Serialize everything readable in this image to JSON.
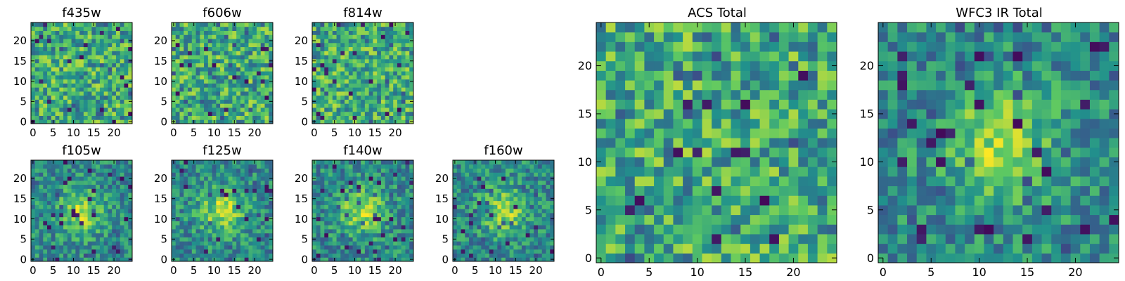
{
  "chart_data": [
    {
      "type": "heatmap",
      "title": "f435w",
      "xticks": [
        "0",
        "5",
        "10",
        "15",
        "20"
      ],
      "yticks": [
        "0",
        "5",
        "10",
        "15",
        "20"
      ],
      "xlim": [
        -0.5,
        24.5
      ],
      "ylim": [
        -0.5,
        24.5
      ],
      "grid_size": 25,
      "cell_values": "random_noise"
    },
    {
      "type": "heatmap",
      "title": "f606w",
      "xticks": [
        "0",
        "5",
        "10",
        "15",
        "20"
      ],
      "yticks": [
        "0",
        "5",
        "10",
        "15",
        "20"
      ],
      "xlim": [
        -0.5,
        24.5
      ],
      "ylim": [
        -0.5,
        24.5
      ],
      "grid_size": 25,
      "cell_values": "random_noise"
    },
    {
      "type": "heatmap",
      "title": "f814w",
      "xticks": [
        "0",
        "5",
        "10",
        "15",
        "20"
      ],
      "yticks": [
        "0",
        "5",
        "10",
        "15",
        "20"
      ],
      "xlim": [
        -0.5,
        24.5
      ],
      "ylim": [
        -0.5,
        24.5
      ],
      "grid_size": 25,
      "cell_values": "random_noise"
    },
    {
      "type": "heatmap",
      "title": "f105w",
      "xticks": [
        "0",
        "5",
        "10",
        "15",
        "20"
      ],
      "yticks": [
        "0",
        "5",
        "10",
        "15",
        "20"
      ],
      "xlim": [
        -0.5,
        24.5
      ],
      "ylim": [
        -0.5,
        24.5
      ],
      "grid_size": 25,
      "cell_values": "noise_with_central_source"
    },
    {
      "type": "heatmap",
      "title": "f125w",
      "xticks": [
        "0",
        "5",
        "10",
        "15",
        "20"
      ],
      "yticks": [
        "0",
        "5",
        "10",
        "15",
        "20"
      ],
      "xlim": [
        -0.5,
        24.5
      ],
      "ylim": [
        -0.5,
        24.5
      ],
      "grid_size": 25,
      "cell_values": "noise_with_central_source"
    },
    {
      "type": "heatmap",
      "title": "f140w",
      "xticks": [
        "0",
        "5",
        "10",
        "15",
        "20"
      ],
      "yticks": [
        "0",
        "5",
        "10",
        "15",
        "20"
      ],
      "xlim": [
        -0.5,
        24.5
      ],
      "ylim": [
        -0.5,
        24.5
      ],
      "grid_size": 25,
      "cell_values": "noise_with_central_source"
    },
    {
      "type": "heatmap",
      "title": "f160w",
      "xticks": [
        "0",
        "5",
        "10",
        "15",
        "20"
      ],
      "yticks": [
        "0",
        "5",
        "10",
        "15",
        "20"
      ],
      "xlim": [
        -0.5,
        24.5
      ],
      "ylim": [
        -0.5,
        24.5
      ],
      "grid_size": 25,
      "cell_values": "noise_with_central_source"
    },
    {
      "type": "heatmap",
      "title": "ACS Total",
      "xticks": [
        "0",
        "5",
        "10",
        "15",
        "20"
      ],
      "yticks": [
        "0",
        "5",
        "10",
        "15",
        "20"
      ],
      "xlim": [
        -0.5,
        24.5
      ],
      "ylim": [
        -0.5,
        24.5
      ],
      "grid_size": 25,
      "cell_values": "random_noise"
    },
    {
      "type": "heatmap",
      "title": "WFC3 IR Total",
      "xticks": [
        "0",
        "5",
        "10",
        "15",
        "20"
      ],
      "yticks": [
        "0",
        "5",
        "10",
        "15",
        "20"
      ],
      "xlim": [
        -0.5,
        24.5
      ],
      "ylim": [
        -0.5,
        24.5
      ],
      "grid_size": 25,
      "cell_values": "noise_with_central_source"
    }
  ],
  "colormap": [
    "#440154",
    "#3b528b",
    "#21918c",
    "#5ec962",
    "#fde725"
  ]
}
